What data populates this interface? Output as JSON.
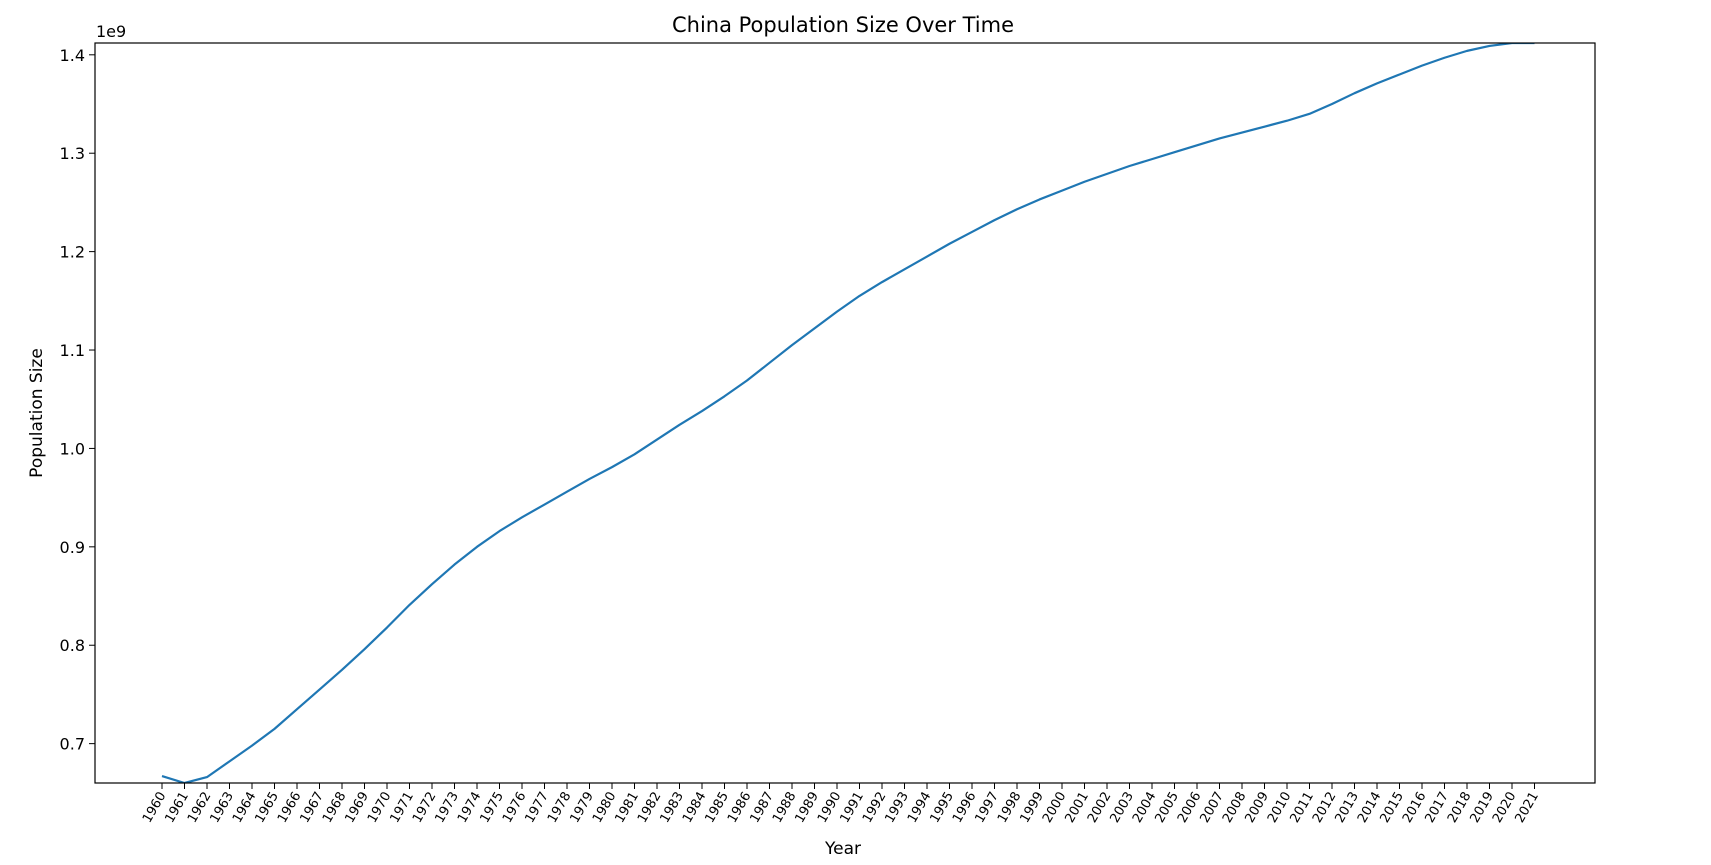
{
  "chart_data": {
    "type": "line",
    "title": "China Population Size Over Time",
    "xlabel": "Year",
    "ylabel": "Population Size",
    "y_offset_text": "1e9",
    "y_multiplier": 1000000000,
    "ylim": [
      0.66,
      1.412
    ],
    "y_ticks": [
      0.7,
      0.8,
      0.9,
      1.0,
      1.1,
      1.2,
      1.3,
      1.4
    ],
    "y_tick_labels": [
      "0.7",
      "0.8",
      "0.9",
      "1.0",
      "1.1",
      "1.2",
      "1.3",
      "1.4"
    ],
    "x": [
      "1960",
      "1961",
      "1962",
      "1963",
      "1964",
      "1965",
      "1966",
      "1967",
      "1968",
      "1969",
      "1970",
      "1971",
      "1972",
      "1973",
      "1974",
      "1975",
      "1976",
      "1977",
      "1978",
      "1979",
      "1980",
      "1981",
      "1982",
      "1983",
      "1984",
      "1985",
      "1986",
      "1987",
      "1988",
      "1989",
      "1990",
      "1991",
      "1992",
      "1993",
      "1994",
      "1995",
      "1996",
      "1997",
      "1998",
      "1999",
      "2000",
      "2001",
      "2002",
      "2003",
      "2004",
      "2005",
      "2006",
      "2007",
      "2008",
      "2009",
      "2010",
      "2011",
      "2012",
      "2013",
      "2014",
      "2015",
      "2016",
      "2017",
      "2018",
      "2019",
      "2020",
      "2021"
    ],
    "series": [
      {
        "values": [
          0.667,
          0.66,
          0.666,
          0.682,
          0.698,
          0.715,
          0.735,
          0.755,
          0.775,
          0.796,
          0.818,
          0.841,
          0.862,
          0.882,
          0.9,
          0.916,
          0.93,
          0.943,
          0.956,
          0.969,
          0.981,
          0.994,
          1.009,
          1.024,
          1.038,
          1.053,
          1.069,
          1.087,
          1.105,
          1.122,
          1.139,
          1.155,
          1.169,
          1.182,
          1.195,
          1.208,
          1.22,
          1.232,
          1.243,
          1.253,
          1.262,
          1.271,
          1.279,
          1.287,
          1.294,
          1.301,
          1.308,
          1.315,
          1.321,
          1.327,
          1.333,
          1.34,
          1.35,
          1.361,
          1.371,
          1.38,
          1.389,
          1.397,
          1.404,
          1.409,
          1.412,
          1.412
        ],
        "color": "#1f77b4"
      }
    ],
    "grid": false,
    "legend": "none"
  }
}
